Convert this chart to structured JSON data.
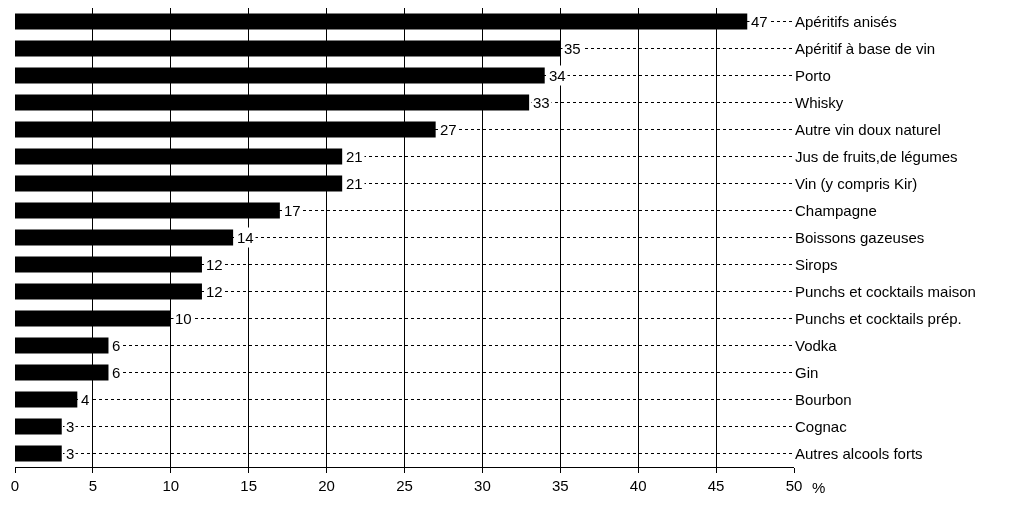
{
  "chart_data": {
    "type": "bar",
    "orientation": "horizontal",
    "xlabel": "%",
    "categories": [
      "Apéritifs anisés",
      "Apéritif à base de vin",
      "Porto",
      "Whisky",
      "Autre vin doux naturel",
      "Jus de fruits,de légumes",
      "Vin (y compris Kir)",
      "Champagne",
      "Boissons gazeuses",
      "Sirops",
      "Punchs et cocktails maison",
      "Punchs et cocktails prép.",
      "Vodka",
      "Gin",
      "Bourbon",
      "Cognac",
      "Autres alcools forts"
    ],
    "values": [
      47,
      35,
      34,
      33,
      27,
      21,
      21,
      17,
      14,
      12,
      12,
      10,
      6,
      6,
      4,
      3,
      3
    ],
    "color": "#000000",
    "data_labels": true,
    "xlim": [
      0,
      50
    ],
    "xticks": [
      0,
      5,
      10,
      15,
      20,
      25,
      30,
      35,
      40,
      45,
      50
    ],
    "grid": true
  }
}
